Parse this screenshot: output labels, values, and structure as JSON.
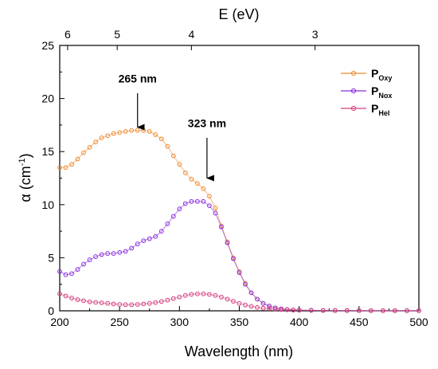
{
  "chart_data": {
    "type": "scatter",
    "xlabel": "Wavelength (nm)",
    "ylabel_main": "α (cm",
    "ylabel_sup": "-1",
    "ylabel_end": ")",
    "xlim": [
      200,
      500
    ],
    "ylim": [
      0,
      25
    ],
    "xticks": [
      200,
      250,
      300,
      350,
      400,
      450,
      500
    ],
    "yticks": [
      0,
      5,
      10,
      15,
      20,
      25
    ],
    "top_axis": {
      "label": "E (eV)",
      "ticks": [
        {
          "label": "6",
          "wavelength": 206.6
        },
        {
          "label": "5",
          "wavelength": 248.0
        },
        {
          "label": "4",
          "wavelength": 310.0
        },
        {
          "label": "3",
          "wavelength": 413.3
        }
      ]
    },
    "annotations": [
      {
        "text": "265 nm",
        "x": 265,
        "y_text": 21.5,
        "arrow_from": 20.5,
        "arrow_to": 17.3
      },
      {
        "text": "323 nm",
        "x": 323,
        "y_text": 17.3,
        "arrow_from": 16.3,
        "arrow_to": 12.5
      }
    ],
    "legend_position": "top-right",
    "series": [
      {
        "name": "P",
        "sub": "Oxy",
        "color": "#f0892a",
        "x": [
          200,
          205,
          210,
          215,
          220,
          225,
          230,
          235,
          240,
          245,
          250,
          255,
          260,
          265,
          270,
          275,
          280,
          285,
          290,
          295,
          300,
          305,
          310,
          315,
          320,
          325,
          330,
          335,
          340,
          345,
          350,
          355,
          360,
          365,
          370,
          375,
          380,
          385,
          390,
          395,
          400,
          410,
          420,
          430,
          440,
          450,
          460,
          470,
          480,
          490,
          500
        ],
        "y": [
          13.5,
          13.5,
          13.8,
          14.3,
          14.9,
          15.4,
          15.9,
          16.3,
          16.5,
          16.7,
          16.8,
          16.9,
          17.0,
          17.0,
          17.0,
          16.9,
          16.6,
          16.2,
          15.5,
          14.6,
          13.8,
          13.0,
          12.4,
          12.0,
          11.5,
          10.8,
          9.7,
          8.0,
          6.5,
          5.0,
          3.7,
          2.6,
          1.7,
          1.1,
          0.7,
          0.45,
          0.28,
          0.18,
          0.12,
          0.08,
          0.06,
          0.04,
          0.03,
          0.02,
          0.02,
          0.02,
          0.01,
          0.01,
          0.01,
          0.01,
          0.01
        ]
      },
      {
        "name": "P",
        "sub": "Nox",
        "color": "#8a2be2",
        "x": [
          200,
          205,
          210,
          215,
          220,
          225,
          230,
          235,
          240,
          245,
          250,
          255,
          260,
          265,
          270,
          275,
          280,
          285,
          290,
          295,
          300,
          305,
          310,
          315,
          320,
          325,
          330,
          335,
          340,
          345,
          350,
          355,
          360,
          365,
          370,
          375,
          380,
          385,
          390,
          395,
          400,
          410,
          420,
          430,
          440,
          450,
          460,
          470,
          480,
          490,
          500
        ],
        "y": [
          3.7,
          3.4,
          3.5,
          3.9,
          4.4,
          4.8,
          5.1,
          5.3,
          5.4,
          5.4,
          5.5,
          5.6,
          5.9,
          6.3,
          6.6,
          6.8,
          7.0,
          7.5,
          8.2,
          8.9,
          9.6,
          10.1,
          10.3,
          10.3,
          10.3,
          9.9,
          9.2,
          7.9,
          6.4,
          4.9,
          3.6,
          2.5,
          1.7,
          1.1,
          0.7,
          0.45,
          0.28,
          0.18,
          0.12,
          0.08,
          0.06,
          0.04,
          0.03,
          0.02,
          0.02,
          0.02,
          0.01,
          0.01,
          0.01,
          0.01,
          0.01
        ]
      },
      {
        "name": "P",
        "sub": "Hel",
        "color": "#d63c7e",
        "x": [
          200,
          205,
          210,
          215,
          220,
          225,
          230,
          235,
          240,
          245,
          250,
          255,
          260,
          265,
          270,
          275,
          280,
          285,
          290,
          295,
          300,
          305,
          310,
          315,
          320,
          325,
          330,
          335,
          340,
          345,
          350,
          355,
          360,
          365,
          370,
          375,
          380,
          385,
          390,
          395,
          400,
          410,
          420,
          430,
          440,
          450,
          460,
          470,
          480,
          490,
          500
        ],
        "y": [
          1.6,
          1.4,
          1.2,
          1.05,
          0.95,
          0.85,
          0.8,
          0.75,
          0.7,
          0.65,
          0.6,
          0.58,
          0.58,
          0.6,
          0.65,
          0.7,
          0.78,
          0.88,
          1.0,
          1.15,
          1.3,
          1.45,
          1.55,
          1.6,
          1.6,
          1.55,
          1.45,
          1.3,
          1.1,
          0.9,
          0.7,
          0.55,
          0.42,
          0.32,
          0.25,
          0.2,
          0.15,
          0.12,
          0.1,
          0.08,
          0.07,
          0.05,
          0.04,
          0.03,
          0.03,
          0.02,
          0.02,
          0.02,
          0.02,
          0.02,
          0.02
        ]
      }
    ]
  }
}
